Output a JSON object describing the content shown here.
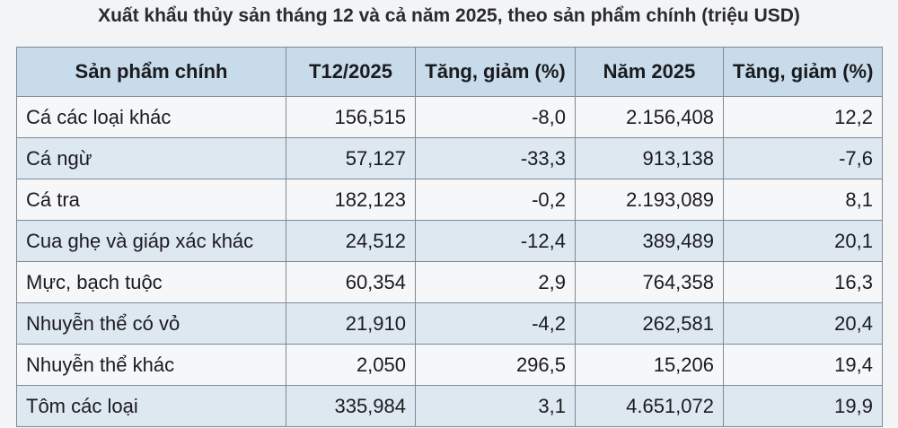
{
  "title": "Xuất khẩu thủy sản tháng 12 và cả năm 2025, theo sản phẩm chính (triệu USD)",
  "table": {
    "header": [
      "Sản phẩm chính",
      "T12/2025",
      "Tăng, giảm (%)",
      "Năm 2025",
      "Tăng, giảm (%)"
    ],
    "rows": [
      [
        "Cá các loại khác",
        "156,515",
        "-8,0",
        "2.156,408",
        "12,2"
      ],
      [
        "Cá ngừ",
        "57,127",
        "-33,3",
        "913,138",
        "-7,6"
      ],
      [
        "Cá tra",
        "182,123",
        "-0,2",
        "2.193,089",
        "8,1"
      ],
      [
        "Cua ghẹ và giáp xác khác",
        "24,512",
        "-12,4",
        "389,489",
        "20,1"
      ],
      [
        "Mực, bạch tuộc",
        "60,354",
        "2,9",
        "764,358",
        "16,3"
      ],
      [
        "Nhuyễn thể có vỏ",
        "21,910",
        "-4,2",
        "262,581",
        "20,4"
      ],
      [
        "Nhuyễn thể khác",
        "2,050",
        "296,5",
        "15,206",
        "19,4"
      ],
      [
        "Tôm các loại",
        "335,984",
        "3,1",
        "4.651,072",
        "19,9"
      ]
    ]
  }
}
